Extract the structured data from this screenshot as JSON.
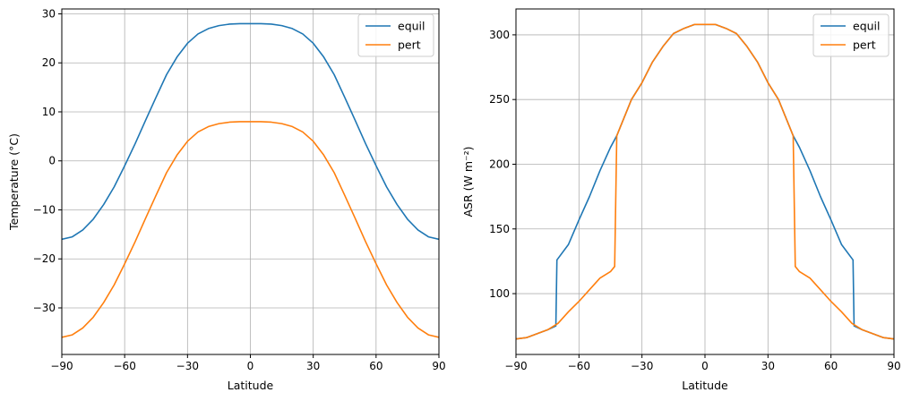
{
  "chart_data": [
    {
      "type": "line",
      "title": "",
      "xlabel": "Latitude",
      "ylabel": "Temperature (°C)",
      "xlim": [
        -90,
        90
      ],
      "ylim": [
        -39.5,
        31
      ],
      "xticks": [
        -90,
        -60,
        -30,
        0,
        30,
        60,
        90
      ],
      "yticks": [
        -30,
        -20,
        -10,
        0,
        10,
        20,
        30
      ],
      "xtick_labels": [
        "−90",
        "−60",
        "−30",
        "0",
        "30",
        "60",
        "90"
      ],
      "ytick_labels": [
        "−30",
        "−20",
        "−10",
        "0",
        "10",
        "20",
        "30"
      ],
      "grid": true,
      "legend_placement": "top-right",
      "x": [
        -90,
        -85,
        -80,
        -75,
        -70,
        -65,
        -60,
        -55,
        -50,
        -45,
        -40,
        -35,
        -30,
        -25,
        -20,
        -15,
        -10,
        -5,
        0,
        5,
        10,
        15,
        20,
        25,
        30,
        35,
        40,
        45,
        50,
        55,
        60,
        65,
        70,
        75,
        80,
        85,
        90
      ],
      "series": [
        {
          "name": "equil",
          "color": "#1f77b4",
          "values": [
            -16.0,
            -15.5,
            -14.1,
            -11.9,
            -8.9,
            -5.3,
            -1.0,
            3.5,
            8.3,
            13.0,
            17.6,
            21.2,
            24.0,
            25.9,
            27.0,
            27.6,
            27.9,
            28.0,
            28.0,
            28.0,
            27.9,
            27.6,
            27.0,
            25.9,
            24.0,
            21.2,
            17.6,
            13.0,
            8.3,
            3.5,
            -1.0,
            -5.3,
            -8.9,
            -11.9,
            -14.1,
            -15.5,
            -16.0
          ]
        },
        {
          "name": "pert",
          "color": "#ff7f0e",
          "values": [
            -36.0,
            -35.5,
            -34.1,
            -31.9,
            -28.9,
            -25.3,
            -21.0,
            -16.5,
            -11.7,
            -7.0,
            -2.4,
            1.2,
            4.0,
            5.9,
            7.0,
            7.6,
            7.9,
            8.0,
            8.0,
            8.0,
            7.9,
            7.6,
            7.0,
            5.9,
            4.0,
            1.2,
            -2.4,
            -7.0,
            -11.7,
            -16.5,
            -21.0,
            -25.3,
            -28.9,
            -31.9,
            -34.1,
            -35.5,
            -36.0
          ]
        }
      ]
    },
    {
      "type": "line",
      "title": "",
      "xlabel": "Latitude",
      "ylabel": "ASR (W m⁻²)",
      "xlim": [
        -90,
        90
      ],
      "ylim": [
        53,
        320
      ],
      "xticks": [
        -90,
        -60,
        -30,
        0,
        30,
        60,
        90
      ],
      "yticks": [
        100,
        150,
        200,
        250,
        300
      ],
      "xtick_labels": [
        "−90",
        "−60",
        "−30",
        "0",
        "30",
        "60",
        "90"
      ],
      "ytick_labels": [
        "100",
        "150",
        "200",
        "250",
        "300"
      ],
      "grid": true,
      "legend_placement": "top-right",
      "series": [
        {
          "name": "equil",
          "color": "#1f77b4",
          "x": [
            -90,
            -85,
            -80,
            -75,
            -71,
            -70.5,
            -65,
            -60,
            -55,
            -50,
            -45,
            -42,
            -40,
            -35,
            -30,
            -25,
            -20,
            -15,
            -10,
            -5,
            0,
            5,
            10,
            15,
            20,
            25,
            30,
            35,
            40,
            42,
            45,
            50,
            55,
            60,
            65,
            70.5,
            71,
            75,
            80,
            85,
            90
          ],
          "values": [
            65,
            66,
            69,
            72,
            75,
            126,
            138,
            157,
            175,
            195,
            213,
            222,
            230,
            250,
            263,
            279,
            291,
            301,
            305,
            308,
            308,
            308,
            305,
            301,
            291,
            279,
            263,
            250,
            230,
            222,
            213,
            195,
            175,
            157,
            138,
            126,
            75,
            72,
            69,
            66,
            65
          ]
        },
        {
          "name": "pert",
          "color": "#ff7f0e",
          "x": [
            -90,
            -85,
            -80,
            -75,
            -70,
            -65,
            -60,
            -55,
            -50,
            -45,
            -43,
            -42,
            -40,
            -35,
            -30,
            -25,
            -20,
            -15,
            -10,
            -5,
            0,
            5,
            10,
            15,
            20,
            25,
            30,
            35,
            40,
            42,
            43,
            45,
            50,
            55,
            60,
            65,
            70,
            75,
            80,
            85,
            90
          ],
          "values": [
            65,
            66,
            69,
            72,
            77,
            86,
            94,
            103,
            112,
            117,
            121,
            222,
            230,
            250,
            263,
            279,
            291,
            301,
            305,
            308,
            308,
            308,
            305,
            301,
            291,
            279,
            263,
            250,
            230,
            222,
            121,
            117,
            112,
            103,
            94,
            86,
            77,
            72,
            69,
            66,
            65
          ]
        }
      ]
    }
  ]
}
